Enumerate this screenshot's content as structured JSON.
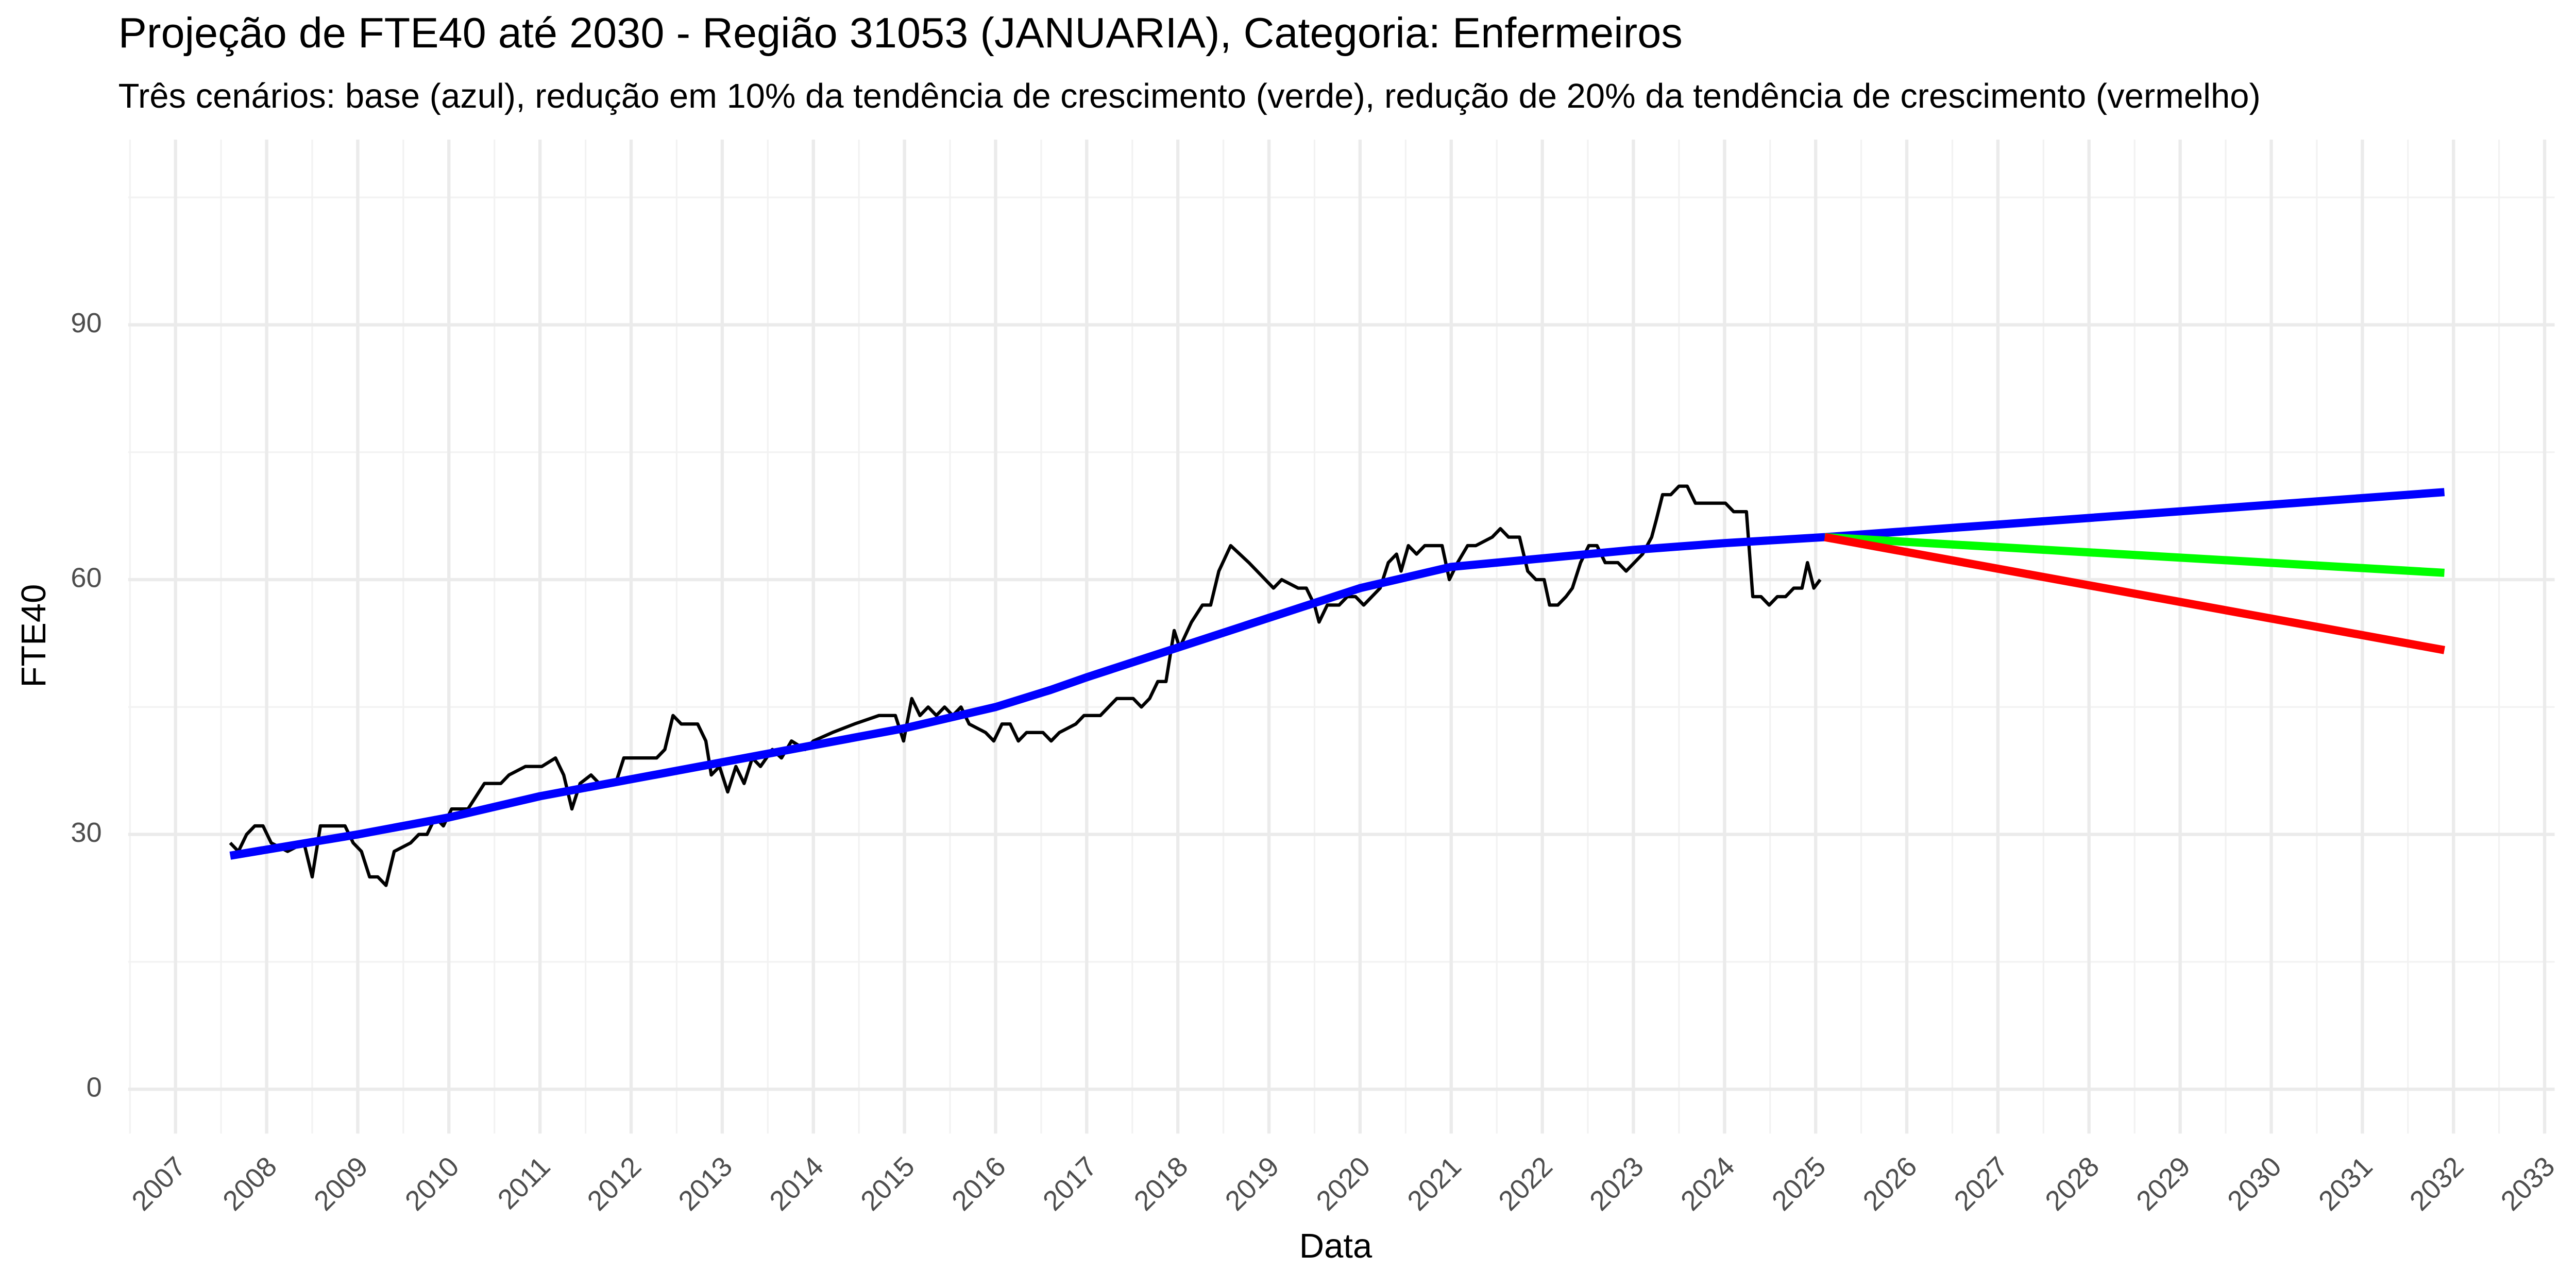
{
  "chart_data": {
    "type": "line",
    "title": "Projeção de FTE40 até 2030 - Região 31053 (JANUARIA), Categoria: Enfermeiros",
    "subtitle": "Três cenários: base (azul), redução em 10% da tendência de crescimento (verde), redução de 20% da tendência de crescimento (vermelho)",
    "x_label": "Data",
    "y_label": "FTE40",
    "xlim": [
      2006.48,
      2033.11
    ],
    "xticks": [
      2007,
      2008,
      2009,
      2010,
      2011,
      2012,
      2013,
      2014,
      2015,
      2016,
      2017,
      2018,
      2019,
      2020,
      2021,
      2022,
      2023,
      2024,
      2025,
      2026,
      2027,
      2028,
      2029,
      2030,
      2031,
      2032,
      2033
    ],
    "ylim": [
      -5.22,
      111.8
    ],
    "yticks": [
      0,
      30,
      60,
      90
    ],
    "grid": true,
    "series": [
      {
        "color": "#000000",
        "width": 2,
        "x": [
          2007.6,
          2007.69,
          2007.78,
          2007.87,
          2007.96,
          2008.05,
          2008.23,
          2008.41,
          2008.5,
          2008.59,
          2008.86,
          2008.95,
          2009.04,
          2009.13,
          2009.22,
          2009.31,
          2009.4,
          2009.58,
          2009.67,
          2009.76,
          2009.85,
          2009.94,
          2010.03,
          2010.21,
          2010.39,
          2010.57,
          2010.66,
          2010.84,
          2011.02,
          2011.17,
          2011.26,
          2011.35,
          2011.44,
          2011.56,
          2011.65,
          2011.83,
          2011.92,
          2012.28,
          2012.37,
          2012.46,
          2012.55,
          2012.73,
          2012.82,
          2012.88,
          2012.97,
          2013.06,
          2013.15,
          2013.24,
          2013.33,
          2013.42,
          2013.55,
          2013.65,
          2013.76,
          2013.91,
          2014.0,
          2014.21,
          2014.45,
          2014.72,
          2014.9,
          2014.99,
          2015.08,
          2015.17,
          2015.26,
          2015.35,
          2015.44,
          2015.53,
          2015.62,
          2015.71,
          2015.89,
          2015.98,
          2016.07,
          2016.16,
          2016.25,
          2016.34,
          2016.52,
          2016.61,
          2016.7,
          2016.88,
          2016.97,
          2017.15,
          2017.33,
          2017.51,
          2017.6,
          2017.69,
          2017.78,
          2017.87,
          2017.96,
          2018.02,
          2018.15,
          2018.27,
          2018.36,
          2018.45,
          2018.58,
          2018.78,
          2018.96,
          2019.05,
          2019.14,
          2019.32,
          2019.41,
          2019.5,
          2019.55,
          2019.64,
          2019.77,
          2019.86,
          2019.95,
          2020.04,
          2020.13,
          2020.22,
          2020.31,
          2020.4,
          2020.45,
          2020.53,
          2020.62,
          2020.71,
          2020.9,
          2020.98,
          2021.07,
          2021.18,
          2021.27,
          2021.45,
          2021.54,
          2021.63,
          2021.75,
          2021.84,
          2021.93,
          2022.02,
          2022.08,
          2022.17,
          2022.26,
          2022.33,
          2022.42,
          2022.51,
          2022.6,
          2022.69,
          2022.83,
          2022.92,
          2023.01,
          2023.1,
          2023.2,
          2023.25,
          2023.32,
          2023.41,
          2023.5,
          2023.59,
          2023.68,
          2024.01,
          2024.1,
          2024.24,
          2024.31,
          2024.4,
          2024.49,
          2024.58,
          2024.67,
          2024.76,
          2024.85,
          2024.91,
          2024.98,
          2025.05
        ],
        "values": [
          29,
          28,
          30,
          31,
          31,
          29,
          28,
          29,
          25,
          31,
          31,
          29,
          28,
          25,
          25,
          24,
          28,
          29,
          30,
          30,
          32,
          31,
          33,
          33,
          36,
          36,
          37,
          38,
          38,
          39,
          37,
          33,
          36,
          37,
          36,
          36,
          39,
          39,
          40,
          44,
          43,
          43,
          41,
          37,
          38,
          35,
          38,
          36,
          39,
          38,
          40,
          39,
          41,
          40,
          41,
          42,
          43,
          44,
          44,
          41,
          46,
          44,
          45,
          44,
          45,
          44,
          45,
          43,
          42,
          41,
          43,
          43,
          41,
          42,
          42,
          41,
          42,
          43,
          44,
          44,
          46,
          46,
          45,
          46,
          48,
          48,
          54,
          52,
          55,
          57,
          57,
          61,
          64,
          62,
          60,
          59,
          60,
          59,
          59,
          57,
          55,
          57,
          57,
          58,
          58,
          57,
          58,
          59,
          62,
          63,
          61,
          64,
          63,
          64,
          64,
          60,
          62,
          64,
          64,
          65,
          66,
          65,
          65,
          61,
          60,
          60,
          57,
          57,
          58,
          59,
          62,
          64,
          64,
          62,
          62,
          61,
          62,
          63,
          65,
          67,
          70,
          70,
          71,
          71,
          69,
          69,
          68,
          68,
          58,
          58,
          57,
          58,
          58,
          59,
          59,
          62,
          59,
          60
        ]
      },
      {
        "color": "#0000ff",
        "width": 5,
        "x": [
          2007.6,
          2009,
          2010,
          2011,
          2012,
          2013,
          2014,
          2015,
          2016,
          2016.6,
          2017,
          2018,
          2019,
          2020,
          2021,
          2022,
          2023,
          2024,
          2025.1,
          2031.9
        ],
        "values": [
          27.5,
          30,
          32,
          34.5,
          36.5,
          38.5,
          40.5,
          42.5,
          45,
          47,
          48.5,
          52,
          55.5,
          59,
          61.5,
          62.5,
          63.5,
          64.3,
          65,
          70.3
        ]
      },
      {
        "color": "#00ff00",
        "width": 5,
        "x": [
          2025.1,
          2031.9
        ],
        "values": [
          65,
          60.8
        ]
      },
      {
        "color": "#ff0000",
        "width": 5,
        "x": [
          2025.1,
          2031.9
        ],
        "values": [
          65,
          51.7
        ]
      }
    ]
  }
}
